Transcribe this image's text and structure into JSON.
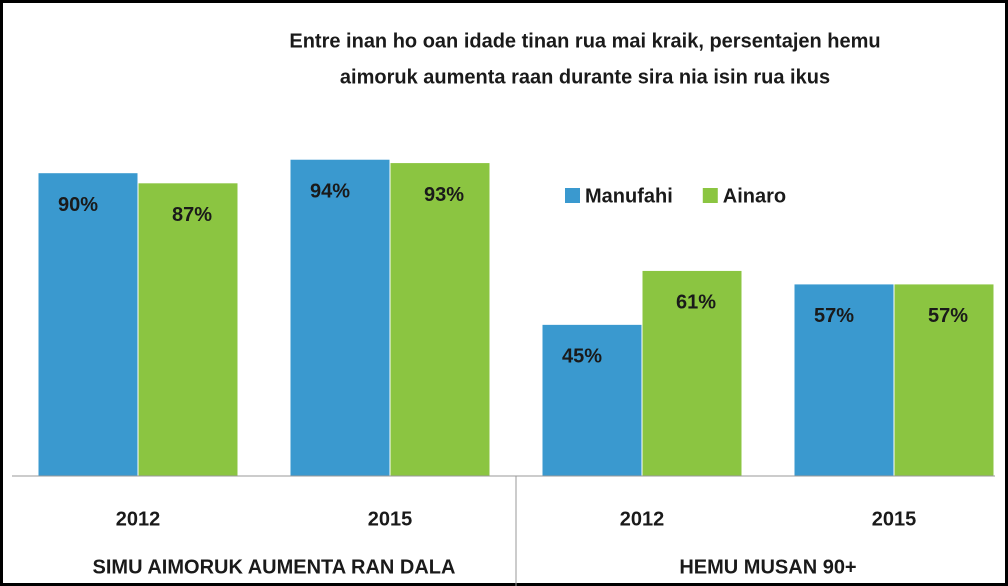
{
  "chart_data": {
    "type": "bar",
    "title": [
      "Entre inan ho oan idade tinan rua mai kraik, persentajen hemu",
      "aimoruk aumenta raan durante sira nia isin rua ikus"
    ],
    "groups": [
      {
        "name": "SIMU AIMORUK AUMENTA RAN DALA",
        "categories": [
          "2012",
          "2015"
        ]
      },
      {
        "name": "HEMU MUSAN 90+",
        "categories": [
          "2012",
          "2015"
        ]
      }
    ],
    "series": [
      {
        "name": "Manufahi",
        "color": "#3a99cf",
        "values": [
          90,
          94,
          45,
          57
        ],
        "value_labels": [
          "90%",
          "94%",
          "45%",
          "57%"
        ]
      },
      {
        "name": "Ainaro",
        "color": "#8bc541",
        "values": [
          87,
          93,
          61,
          57
        ],
        "value_labels": [
          "87%",
          "93%",
          "61%",
          "57%"
        ]
      }
    ],
    "ylim": [
      0,
      100
    ],
    "legend": "top-right"
  }
}
